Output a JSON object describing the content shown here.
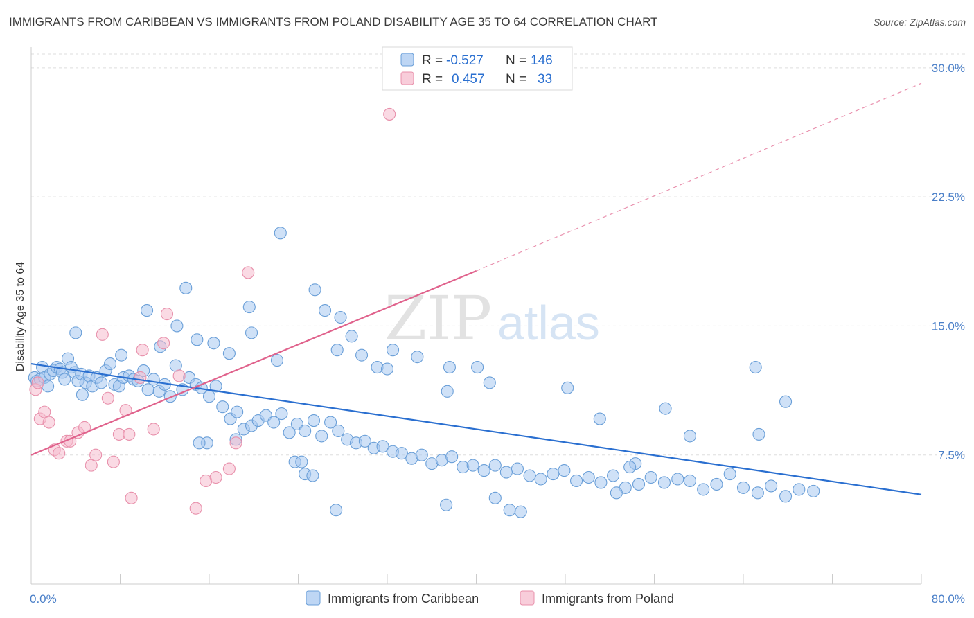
{
  "title": "IMMIGRANTS FROM CARIBBEAN VS IMMIGRANTS FROM POLAND DISABILITY AGE 35 TO 64 CORRELATION CHART",
  "source": "Source: ZipAtlas.com",
  "watermark": {
    "part1": "ZIP",
    "part2": "atlas"
  },
  "colors": {
    "caribbean_fill": "#a8c8f0",
    "caribbean_stroke": "#6a9fd8",
    "caribbean_line": "#2a6fd0",
    "poland_fill": "#f6bccd",
    "poland_stroke": "#e890ab",
    "poland_line": "#e0628c",
    "tick_text": "#4a7fc8",
    "grid": "#dddddd"
  },
  "legend": {
    "rows": [
      {
        "r_label": "R =",
        "r_value": "-0.527",
        "n_label": "N =",
        "n_value": "146"
      },
      {
        "r_label": "R =",
        "r_value": "0.457",
        "n_label": "N =",
        "n_value": "33"
      }
    ]
  },
  "chart_data": {
    "type": "scatter",
    "ylabel": "Disability Age 35 to 64",
    "x_tick_labels": [
      "0.0%",
      "80.0%"
    ],
    "y_tick_labels": [
      "7.5%",
      "15.0%",
      "22.5%",
      "30.0%"
    ],
    "y_ticks": [
      7.5,
      15.0,
      22.5,
      30.0
    ],
    "xlim": [
      0,
      80
    ],
    "ylim": [
      0,
      30.8
    ],
    "grid": true,
    "legend_position": "top-center",
    "series": [
      {
        "name": "Immigrants from Caribbean",
        "R": -0.527,
        "N": 146,
        "trend": {
          "x": [
            0,
            80
          ],
          "y": [
            12.8,
            5.2
          ]
        },
        "points": [
          [
            0.3,
            12.0
          ],
          [
            0.5,
            11.8
          ],
          [
            0.8,
            11.9
          ],
          [
            1.0,
            12.6
          ],
          [
            1.2,
            12.0
          ],
          [
            1.5,
            11.5
          ],
          [
            1.7,
            12.2
          ],
          [
            2.0,
            12.4
          ],
          [
            2.3,
            12.6
          ],
          [
            2.6,
            12.5
          ],
          [
            2.8,
            12.3
          ],
          [
            3.0,
            11.9
          ],
          [
            3.3,
            13.1
          ],
          [
            3.6,
            12.6
          ],
          [
            3.9,
            12.3
          ],
          [
            4.2,
            11.8
          ],
          [
            4.5,
            12.2
          ],
          [
            4.9,
            11.7
          ],
          [
            5.2,
            12.1
          ],
          [
            5.5,
            11.5
          ],
          [
            5.9,
            12.0
          ],
          [
            6.3,
            11.7
          ],
          [
            6.7,
            12.4
          ],
          [
            7.1,
            12.8
          ],
          [
            7.5,
            11.6
          ],
          [
            7.9,
            11.5
          ],
          [
            8.3,
            12.0
          ],
          [
            8.8,
            12.1
          ],
          [
            9.2,
            11.9
          ],
          [
            9.6,
            11.8
          ],
          [
            10.1,
            12.4
          ],
          [
            10.5,
            11.3
          ],
          [
            11.0,
            11.9
          ],
          [
            11.5,
            11.2
          ],
          [
            12.0,
            11.6
          ],
          [
            12.5,
            10.9
          ],
          [
            13.0,
            12.7
          ],
          [
            13.6,
            11.3
          ],
          [
            14.2,
            12.0
          ],
          [
            14.8,
            11.6
          ],
          [
            15.3,
            11.4
          ],
          [
            16.0,
            10.9
          ],
          [
            16.6,
            11.5
          ],
          [
            17.2,
            10.3
          ],
          [
            17.9,
            9.6
          ],
          [
            18.5,
            10.0
          ],
          [
            19.1,
            9.0
          ],
          [
            19.8,
            9.2
          ],
          [
            20.4,
            9.5
          ],
          [
            21.1,
            9.8
          ],
          [
            21.8,
            9.4
          ],
          [
            22.5,
            9.9
          ],
          [
            23.2,
            8.8
          ],
          [
            23.9,
            9.3
          ],
          [
            24.6,
            8.9
          ],
          [
            25.4,
            9.5
          ],
          [
            26.1,
            8.6
          ],
          [
            26.9,
            9.4
          ],
          [
            27.6,
            8.9
          ],
          [
            28.4,
            8.4
          ],
          [
            29.2,
            8.2
          ],
          [
            30.0,
            8.3
          ],
          [
            30.8,
            7.9
          ],
          [
            31.6,
            8.0
          ],
          [
            32.5,
            7.7
          ],
          [
            33.3,
            7.6
          ],
          [
            34.2,
            7.3
          ],
          [
            35.1,
            7.5
          ],
          [
            36.0,
            7.0
          ],
          [
            36.9,
            7.2
          ],
          [
            37.8,
            7.4
          ],
          [
            38.8,
            6.8
          ],
          [
            39.7,
            6.9
          ],
          [
            40.7,
            6.6
          ],
          [
            41.7,
            6.9
          ],
          [
            42.7,
            6.5
          ],
          [
            43.7,
            6.7
          ],
          [
            44.8,
            6.3
          ],
          [
            45.8,
            6.1
          ],
          [
            46.9,
            6.4
          ],
          [
            47.9,
            6.6
          ],
          [
            49.0,
            6.0
          ],
          [
            50.1,
            6.2
          ],
          [
            51.2,
            5.9
          ],
          [
            52.3,
            6.3
          ],
          [
            53.4,
            5.6
          ],
          [
            54.6,
            5.8
          ],
          [
            55.7,
            6.2
          ],
          [
            56.9,
            5.9
          ],
          [
            58.1,
            6.1
          ],
          [
            59.2,
            6.0
          ],
          [
            60.4,
            5.5
          ],
          [
            61.6,
            5.8
          ],
          [
            62.8,
            6.4
          ],
          [
            64.0,
            5.6
          ],
          [
            65.3,
            5.3
          ],
          [
            66.5,
            5.7
          ],
          [
            67.8,
            5.1
          ],
          [
            69.0,
            5.5
          ],
          [
            70.3,
            5.4
          ],
          [
            4.6,
            11.0
          ],
          [
            4.0,
            14.6
          ],
          [
            8.1,
            13.3
          ],
          [
            10.4,
            15.9
          ],
          [
            11.6,
            13.8
          ],
          [
            13.9,
            17.2
          ],
          [
            13.1,
            15.0
          ],
          [
            14.9,
            14.2
          ],
          [
            16.4,
            14.0
          ],
          [
            17.8,
            13.4
          ],
          [
            19.6,
            16.1
          ],
          [
            19.8,
            14.6
          ],
          [
            22.1,
            13.0
          ],
          [
            22.4,
            20.4
          ],
          [
            25.5,
            17.1
          ],
          [
            26.4,
            15.9
          ],
          [
            27.8,
            15.5
          ],
          [
            27.5,
            13.6
          ],
          [
            28.8,
            14.4
          ],
          [
            29.7,
            13.3
          ],
          [
            31.1,
            12.6
          ],
          [
            32.0,
            12.5
          ],
          [
            32.5,
            13.6
          ],
          [
            34.7,
            13.2
          ],
          [
            37.6,
            12.6
          ],
          [
            40.1,
            12.6
          ],
          [
            41.2,
            11.7
          ],
          [
            37.4,
            11.2
          ],
          [
            48.2,
            11.4
          ],
          [
            65.1,
            12.6
          ],
          [
            67.8,
            10.6
          ],
          [
            57.0,
            10.2
          ],
          [
            51.1,
            9.6
          ],
          [
            59.2,
            8.6
          ],
          [
            65.4,
            8.7
          ],
          [
            52.6,
            5.3
          ],
          [
            54.3,
            7.0
          ],
          [
            53.8,
            6.8
          ],
          [
            41.7,
            5.0
          ],
          [
            43.0,
            4.3
          ],
          [
            44.0,
            4.2
          ],
          [
            37.3,
            4.6
          ],
          [
            27.4,
            4.3
          ],
          [
            23.7,
            7.1
          ],
          [
            24.3,
            7.1
          ],
          [
            24.6,
            6.4
          ],
          [
            25.3,
            6.3
          ],
          [
            15.8,
            8.2
          ],
          [
            15.1,
            8.2
          ],
          [
            18.4,
            8.4
          ]
        ]
      },
      {
        "name": "Immigrants from Poland",
        "R": 0.457,
        "N": 33,
        "trend": {
          "x": [
            0,
            40
          ],
          "y": [
            7.5,
            18.2
          ]
        },
        "trend_extension": {
          "x": [
            40,
            80
          ],
          "y": [
            18.2,
            29.1
          ]
        },
        "points": [
          [
            0.4,
            11.3
          ],
          [
            0.6,
            11.7
          ],
          [
            0.8,
            9.6
          ],
          [
            1.2,
            10.0
          ],
          [
            1.6,
            9.4
          ],
          [
            2.1,
            7.8
          ],
          [
            2.5,
            7.6
          ],
          [
            3.2,
            8.3
          ],
          [
            3.5,
            8.3
          ],
          [
            4.2,
            8.8
          ],
          [
            4.8,
            9.1
          ],
          [
            5.4,
            6.9
          ],
          [
            5.8,
            7.5
          ],
          [
            6.4,
            14.5
          ],
          [
            6.9,
            10.8
          ],
          [
            7.4,
            7.1
          ],
          [
            7.9,
            8.7
          ],
          [
            8.5,
            10.1
          ],
          [
            8.8,
            8.7
          ],
          [
            9.0,
            5.0
          ],
          [
            9.8,
            12.0
          ],
          [
            10.0,
            13.6
          ],
          [
            11.0,
            9.0
          ],
          [
            11.9,
            14.0
          ],
          [
            12.2,
            15.7
          ],
          [
            13.3,
            12.1
          ],
          [
            14.8,
            4.4
          ],
          [
            15.7,
            6.0
          ],
          [
            16.6,
            6.2
          ],
          [
            17.8,
            6.7
          ],
          [
            18.4,
            8.2
          ],
          [
            19.5,
            18.1
          ],
          [
            32.2,
            27.3
          ]
        ]
      }
    ]
  }
}
